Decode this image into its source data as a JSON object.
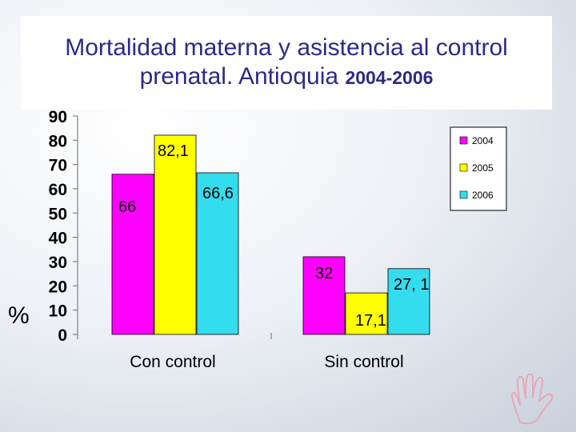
{
  "slide": {
    "title_line1": "Mortalidad materna y asistencia al control",
    "title_line2": "prenatal. Antioquia ",
    "title_years": "2004-2006"
  },
  "decor": {
    "icon": "hand-outline-icon",
    "color": "#e7a8b5"
  },
  "chart_data": {
    "type": "bar",
    "categories": [
      "Con control",
      "Sin control"
    ],
    "series": [
      {
        "name": "2004",
        "values": [
          66,
          32
        ],
        "labels": [
          "66",
          "32"
        ],
        "color": "#ff00ff"
      },
      {
        "name": "2005",
        "values": [
          82.1,
          17.1
        ],
        "labels": [
          "82,1",
          "17,1"
        ],
        "color": "#ffff00"
      },
      {
        "name": "2006",
        "values": [
          66.6,
          27.1
        ],
        "labels": [
          "66,6",
          "27, 1"
        ],
        "color": "#33ddee"
      }
    ],
    "ylim": [
      0,
      90
    ],
    "yticks": [
      0,
      10,
      20,
      30,
      40,
      50,
      60,
      70,
      80,
      90
    ],
    "ylabel": "%",
    "xlabel": "",
    "legend_position": "top-right",
    "grid": false
  }
}
